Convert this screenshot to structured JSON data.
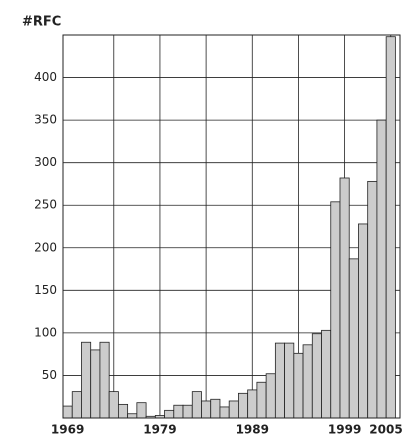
{
  "chart_data": {
    "type": "bar",
    "y_label": "#RFC",
    "x": [
      1969,
      1970,
      1971,
      1972,
      1973,
      1974,
      1975,
      1976,
      1977,
      1978,
      1979,
      1980,
      1981,
      1982,
      1983,
      1984,
      1985,
      1986,
      1987,
      1988,
      1989,
      1990,
      1991,
      1992,
      1993,
      1994,
      1995,
      1996,
      1997,
      1998,
      1999,
      2000,
      2001,
      2002,
      2003,
      2004
    ],
    "values": [
      14,
      31,
      89,
      80,
      89,
      31,
      16,
      5,
      18,
      2,
      3,
      9,
      15,
      15,
      31,
      20,
      22,
      13,
      20,
      29,
      33,
      42,
      52,
      88,
      88,
      76,
      86,
      99,
      103,
      254,
      282,
      187,
      228,
      278,
      350,
      448
    ],
    "color": "#cccccc",
    "xlim": [
      1968.5,
      2005
    ],
    "xticks": [
      1969,
      1979,
      1989,
      1999,
      2005
    ],
    "xgrid": [
      1974,
      1979,
      1984,
      1989,
      1994,
      1999,
      2004
    ],
    "ylim": [
      0,
      450
    ],
    "yticks": [
      50,
      100,
      150,
      200,
      250,
      300,
      350,
      400
    ],
    "grid": true
  }
}
